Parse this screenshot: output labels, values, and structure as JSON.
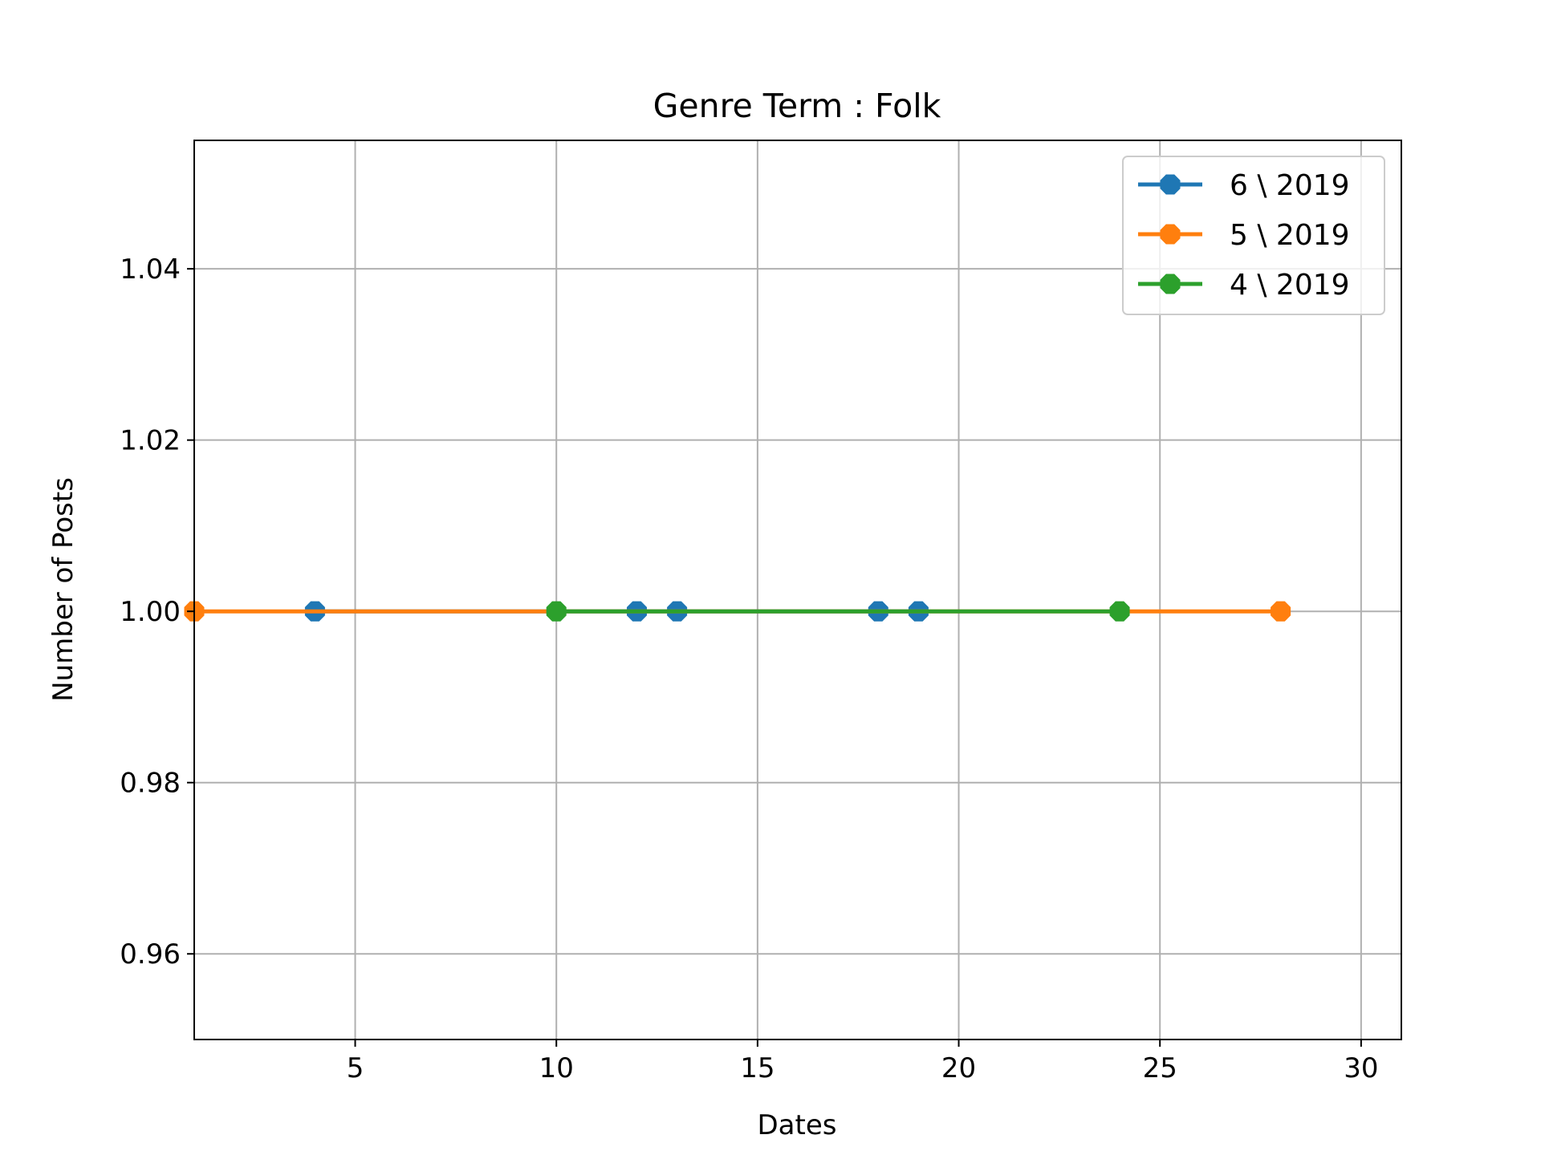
{
  "chart_data": {
    "type": "line",
    "title": "Genre Term : Folk",
    "xlabel": "Dates",
    "ylabel": "Number of Posts",
    "xlim": [
      1,
      31
    ],
    "ylim": [
      0.95,
      1.055
    ],
    "xticks": [
      5,
      10,
      15,
      20,
      25,
      30
    ],
    "yticks": [
      0.96,
      0.98,
      1.0,
      1.02,
      1.04
    ],
    "xtick_labels": [
      "5",
      "10",
      "15",
      "20",
      "25",
      "30"
    ],
    "ytick_labels": [
      "0.96",
      "0.98",
      "1.00",
      "1.02",
      "1.04"
    ],
    "grid": true,
    "legend_position": "top-right",
    "series": [
      {
        "name": "6 \\ 2019",
        "color": "#1f77b4",
        "marker": "octagon",
        "x": [
          4,
          12,
          13,
          18,
          19
        ],
        "y": [
          1,
          1,
          1,
          1,
          1
        ]
      },
      {
        "name": "5 \\ 2019",
        "color": "#ff7f0e",
        "marker": "octagon",
        "x": [
          1,
          28
        ],
        "y": [
          1,
          1
        ]
      },
      {
        "name": "4 \\ 2019",
        "color": "#2ca02c",
        "marker": "octagon",
        "x": [
          10,
          24
        ],
        "y": [
          1,
          1
        ]
      }
    ]
  }
}
